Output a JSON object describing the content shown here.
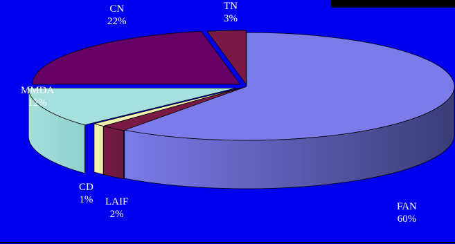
{
  "chart_data": {
    "type": "pie",
    "style": "3d-exploded-depth",
    "title": "",
    "slices": [
      {
        "name": "FAN",
        "value": 60,
        "label": "60%",
        "color": "#7b7bea",
        "side": "#3c3c78"
      },
      {
        "name": "LAIF",
        "value": 2,
        "label": "2%",
        "color": "#7a1a44",
        "side": "#6a1a3c"
      },
      {
        "name": "CD",
        "value": 1,
        "label": "1%",
        "color": "#f2f2b0",
        "side": "#e8e8a8"
      },
      {
        "name": "MMDA",
        "value": 12,
        "label": "12%",
        "color": "#a6e0de",
        "side": "#8ecfcc"
      },
      {
        "name": "CN",
        "value": 22,
        "label": "22%",
        "color": "#660066",
        "side": "#4d004d"
      },
      {
        "name": "TN",
        "value": 3,
        "label": "3%",
        "color": "#7a1a44",
        "side": "#5a1030"
      }
    ],
    "legend": "none",
    "background": "#0000ee"
  }
}
